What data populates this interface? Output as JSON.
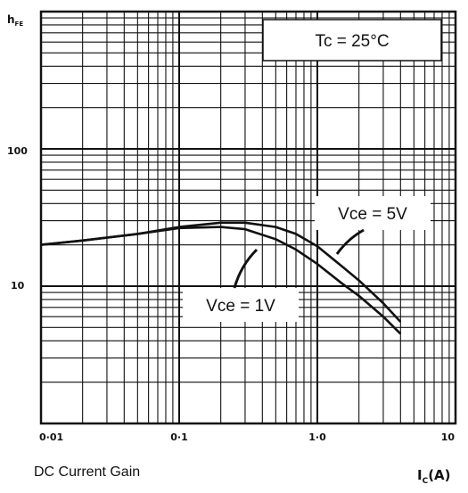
{
  "chart_data": {
    "type": "line",
    "title": "",
    "caption": "DC Current Gain",
    "ylabel": "h_FE",
    "ylabel_main": "h",
    "ylabel_sub": "FE",
    "xlabel": "I_C(A)",
    "xunit_label": "I",
    "xunit_sub": "C",
    "xunit_suffix": "(A)",
    "xscale": "log",
    "yscale": "log",
    "xlim": [
      0.01,
      10
    ],
    "ylim": [
      1,
      1000
    ],
    "x_tick_labels": [
      "0·01",
      "0·1",
      "1·0",
      "10"
    ],
    "x_tick_values": [
      0.01,
      0.1,
      1.0,
      10
    ],
    "y_tick_labels": [
      "100",
      "10"
    ],
    "y_tick_values": [
      100,
      10
    ],
    "grid": true,
    "annotation_box": "Tc = 25°C",
    "series": [
      {
        "name": "Vce = 5V",
        "x": [
          0.01,
          0.02,
          0.05,
          0.1,
          0.2,
          0.3,
          0.5,
          0.7,
          1.0,
          1.5,
          2.0,
          3.0,
          4.0
        ],
        "y": [
          20,
          21.5,
          24,
          27,
          29,
          29,
          27,
          24,
          19.5,
          14,
          11,
          7.5,
          5.5
        ]
      },
      {
        "name": "Vce = 1V",
        "x": [
          0.01,
          0.02,
          0.05,
          0.1,
          0.2,
          0.3,
          0.5,
          0.7,
          1.0,
          1.5,
          2.0,
          3.0,
          4.0
        ],
        "y": [
          20,
          21.5,
          24,
          26.5,
          27,
          26,
          22,
          18.5,
          14.5,
          10.5,
          8.5,
          6,
          4.5
        ]
      }
    ],
    "series_labels": [
      "Vce = 5V",
      "Vce = 1V"
    ]
  }
}
